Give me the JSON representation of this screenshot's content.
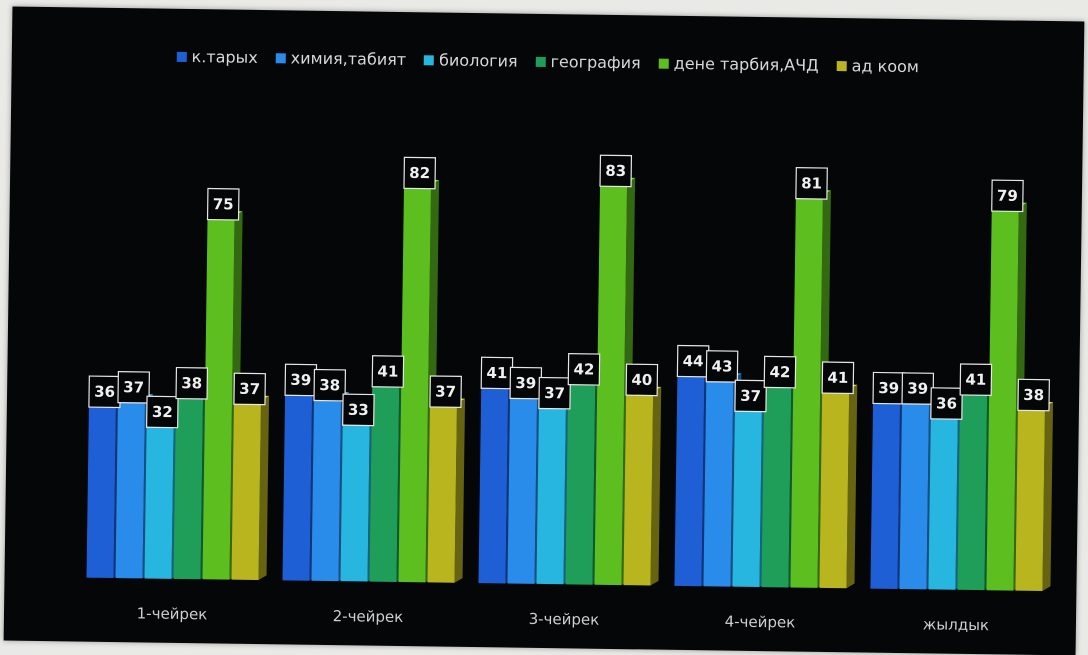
{
  "chart_data": {
    "type": "bar",
    "categories": [
      "1-чейрек",
      "2-чейрек",
      "3-чейрек",
      "4-чейрек",
      "жылдык"
    ],
    "series": [
      {
        "name": "к.тарых",
        "color": "#1e5fd6",
        "values": [
          36,
          39,
          41,
          44,
          39
        ]
      },
      {
        "name": "химия,табият",
        "color": "#2a8cea",
        "values": [
          37,
          38,
          39,
          43,
          39
        ]
      },
      {
        "name": "биология",
        "color": "#27b6e0",
        "values": [
          32,
          33,
          37,
          37,
          36
        ]
      },
      {
        "name": "география",
        "color": "#1f9e5a",
        "values": [
          38,
          41,
          42,
          42,
          41
        ]
      },
      {
        "name": "дене тарбия,АЧД",
        "color": "#5cbf1f",
        "values": [
          75,
          82,
          83,
          81,
          79
        ]
      },
      {
        "name": "ад коом",
        "color": "#b9b51e",
        "values": [
          37,
          37,
          40,
          41,
          38
        ]
      }
    ],
    "title": "",
    "xlabel": "",
    "ylabel": "",
    "ylim": [
      0,
      100
    ],
    "grid": false,
    "legend_position": "top",
    "data_labels": true,
    "style": "3d-clustered-column"
  }
}
